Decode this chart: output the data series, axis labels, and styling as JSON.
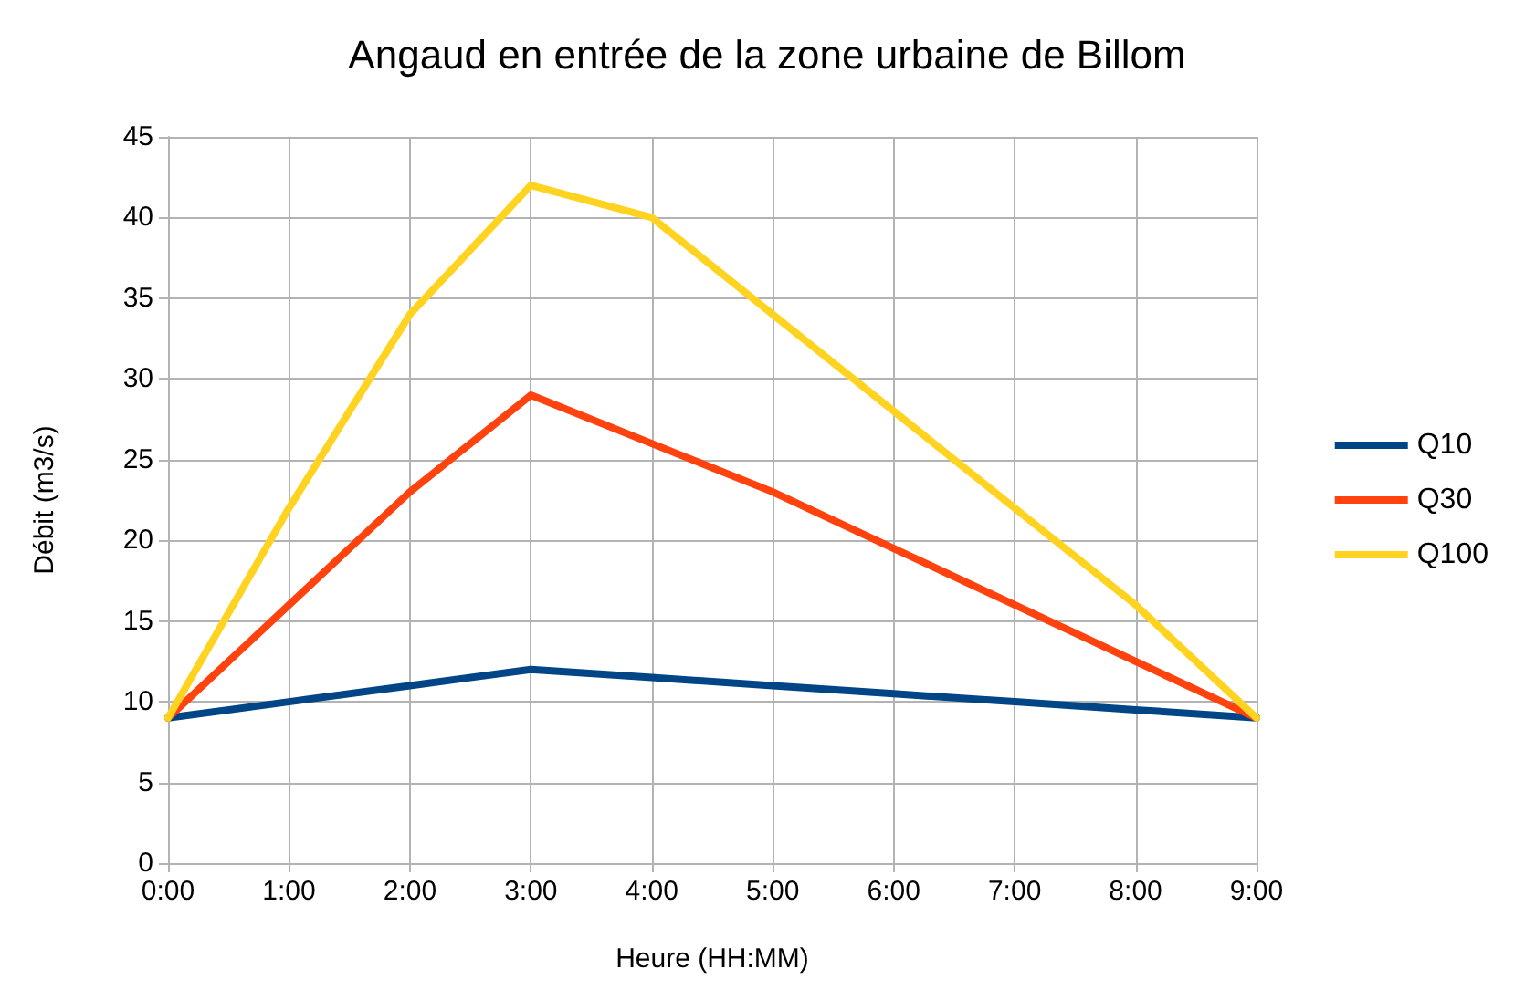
{
  "chart_data": {
    "type": "line",
    "title": "Angaud en entrée de la zone urbaine de Billom",
    "xlabel": "Heure (HH:MM)",
    "ylabel": "Débit (m3/s)",
    "x": [
      0,
      1,
      2,
      3,
      4,
      5,
      6,
      7,
      8,
      9
    ],
    "xlim": [
      0,
      9
    ],
    "xticks": [
      {
        "value": 0,
        "label": "0:00"
      },
      {
        "value": 1,
        "label": "1:00"
      },
      {
        "value": 2,
        "label": "2:00"
      },
      {
        "value": 3,
        "label": "3:00"
      },
      {
        "value": 4,
        "label": "4:00"
      },
      {
        "value": 5,
        "label": "5:00"
      },
      {
        "value": 6,
        "label": "6:00"
      },
      {
        "value": 7,
        "label": "7:00"
      },
      {
        "value": 8,
        "label": "8:00"
      },
      {
        "value": 9,
        "label": "9:00"
      }
    ],
    "ylim": [
      0,
      45
    ],
    "yticks": [
      0,
      5,
      10,
      15,
      20,
      25,
      30,
      35,
      40,
      45
    ],
    "series": [
      {
        "name": "Q10",
        "color": "#004586",
        "values": [
          9,
          10,
          11,
          12,
          11.5,
          11,
          10.5,
          10,
          9.5,
          9
        ]
      },
      {
        "name": "Q30",
        "color": "#ff420e",
        "values": [
          9,
          16,
          23,
          29,
          26,
          23,
          19.5,
          16,
          12.5,
          9
        ]
      },
      {
        "name": "Q100",
        "color": "#ffd320",
        "values": [
          9,
          22,
          34,
          42,
          40,
          34,
          28,
          22,
          16,
          9
        ]
      }
    ],
    "grid": true,
    "legend": "right",
    "marker": "none",
    "line_style": "solid"
  }
}
